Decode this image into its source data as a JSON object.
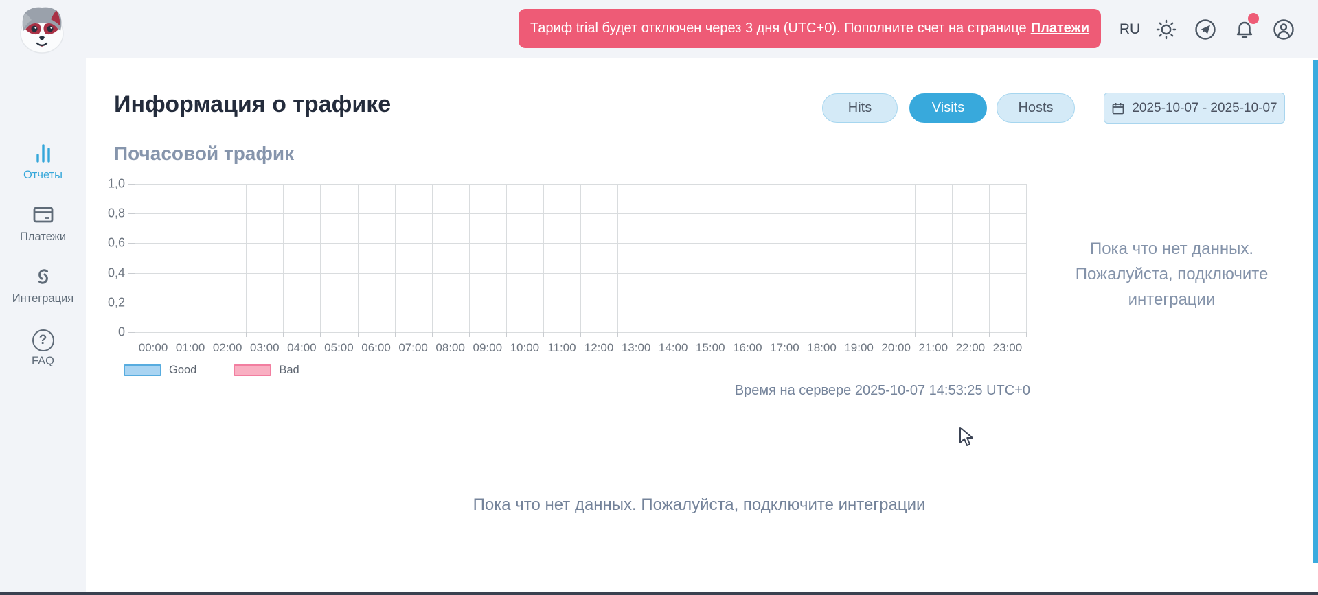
{
  "header": {
    "alert": {
      "text": "Тариф trial будет отключен через 3 дня (UTC+0). Пополните счет на странице",
      "link_label": "Платежи"
    },
    "language": "RU"
  },
  "sidebar": {
    "items": [
      {
        "label": "Отчеты",
        "icon": "bar-chart-icon",
        "active": true
      },
      {
        "label": "Платежи",
        "icon": "credit-card-icon",
        "active": false
      },
      {
        "label": "Интеграция",
        "icon": "link-icon",
        "active": false
      },
      {
        "label": "FAQ",
        "icon": "question-circle-icon",
        "active": false,
        "icon_glyph": "?"
      }
    ]
  },
  "main": {
    "title": "Информация о трафике",
    "tabs": [
      {
        "label": "Hits",
        "active": false
      },
      {
        "label": "Visits",
        "active": true
      },
      {
        "label": "Hosts",
        "active": false
      }
    ],
    "date_range": "2025-10-07 - 2025-10-07",
    "server_time": "Время на сервере 2025-10-07 14:53:25 UTC+0",
    "side_empty_message": "Пока что нет данных. Пожалуйста, подключите интеграции",
    "bottom_empty_message": "Пока что нет данных. Пожалуйста, подключите интеграции"
  },
  "chart_data": {
    "type": "bar",
    "title": "Почасовой трафик",
    "categories": [
      "00:00",
      "01:00",
      "02:00",
      "03:00",
      "04:00",
      "05:00",
      "06:00",
      "07:00",
      "08:00",
      "09:00",
      "10:00",
      "11:00",
      "12:00",
      "13:00",
      "14:00",
      "15:00",
      "16:00",
      "17:00",
      "18:00",
      "19:00",
      "20:00",
      "21:00",
      "22:00",
      "23:00"
    ],
    "series": [
      {
        "name": "Good",
        "values": []
      },
      {
        "name": "Bad",
        "values": []
      }
    ],
    "ylim": [
      0,
      1
    ],
    "y_ticks": [
      {
        "v": 1.0,
        "label": "1,0"
      },
      {
        "v": 0.8,
        "label": "0,8"
      },
      {
        "v": 0.6,
        "label": "0,6"
      },
      {
        "v": 0.4,
        "label": "0,4"
      },
      {
        "v": 0.2,
        "label": "0,2"
      },
      {
        "v": 0.0,
        "label": "0"
      }
    ],
    "grid": true,
    "legend_position": "bottom-left",
    "legend": [
      {
        "label": "Good",
        "fill": "#a9d4f2",
        "border": "#57acdf"
      },
      {
        "label": "Bad",
        "fill": "#f9afc2",
        "border": "#f27ea0"
      }
    ],
    "no_data": true
  },
  "colors": {
    "accent_blue": "#38a9dc",
    "light_blue": "#d4eaf7",
    "banner_pink": "#ee5b76",
    "bg_gray": "#f2f4f8",
    "dark_text": "#242c3c",
    "muted_text": "#8392a9",
    "grid": "#d9dcde",
    "bottom_bar": "#3a4150"
  }
}
